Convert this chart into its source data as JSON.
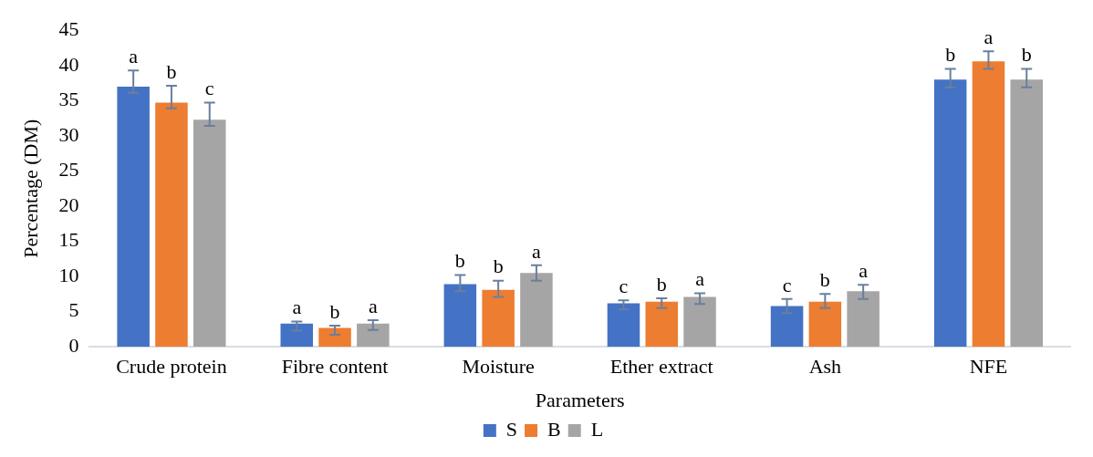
{
  "chart_data": {
    "type": "bar",
    "xlabel": "Parameters",
    "ylabel": "Percentage (DM)",
    "categories": [
      "Crude protein",
      "Fibre content",
      "Moisture",
      "Ether extract",
      "Ash",
      "NFE"
    ],
    "series": [
      {
        "name": "S",
        "color": "#4472c4",
        "values": [
          37.0,
          3.3,
          8.9,
          6.2,
          5.8,
          38.0
        ],
        "errors": [
          [
            36.1,
            39.3
          ],
          [
            2.3,
            3.6
          ],
          [
            7.9,
            10.2
          ],
          [
            5.3,
            6.6
          ],
          [
            4.8,
            6.8
          ],
          [
            36.9,
            39.5
          ]
        ],
        "value_labels": [
          "a",
          "a",
          "b",
          "c",
          "c",
          "b"
        ]
      },
      {
        "name": "B",
        "color": "#ed7d31",
        "values": [
          34.7,
          2.7,
          8.1,
          6.4,
          6.4,
          40.6
        ],
        "errors": [
          [
            33.9,
            37.1
          ],
          [
            1.7,
            3.0
          ],
          [
            7.1,
            9.4
          ],
          [
            5.5,
            6.9
          ],
          [
            5.5,
            7.5
          ],
          [
            39.5,
            42.0
          ]
        ],
        "value_labels": [
          "b",
          "b",
          "b",
          "b",
          "b",
          "a"
        ]
      },
      {
        "name": "L",
        "color": "#a5a5a5",
        "values": [
          32.3,
          3.3,
          10.5,
          7.1,
          7.9,
          38.0
        ],
        "errors": [
          [
            31.4,
            34.7
          ],
          [
            2.4,
            3.8
          ],
          [
            9.4,
            11.6
          ],
          [
            6.1,
            7.6
          ],
          [
            6.8,
            8.8
          ],
          [
            36.9,
            39.5
          ]
        ],
        "value_labels": [
          "c",
          "a",
          "a",
          "a",
          "a",
          "b"
        ]
      }
    ],
    "ylim": [
      0,
      45
    ],
    "yticks": [
      0,
      5,
      10,
      15,
      20,
      25,
      30,
      35,
      40,
      45
    ],
    "grid": false,
    "legend": "bottom"
  }
}
